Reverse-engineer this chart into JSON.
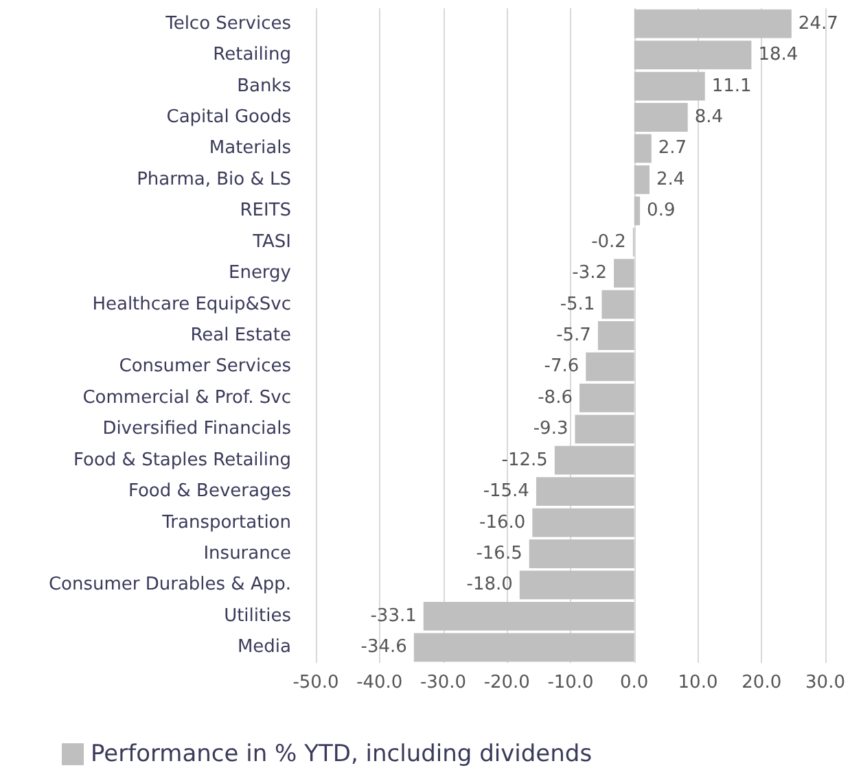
{
  "chart_data": {
    "type": "bar",
    "orientation": "horizontal",
    "categories": [
      "Telco Services",
      "Retailing",
      "Banks",
      "Capital Goods",
      "Materials",
      "Pharma, Bio & LS",
      "REITS",
      "TASI",
      "Energy",
      "Healthcare Equip&Svc",
      "Real Estate",
      "Consumer Services",
      "Commercial & Prof. Svc",
      "Diversified Financials",
      "Food & Staples Retailing",
      "Food & Beverages",
      "Transportation",
      "Insurance",
      "Consumer Durables & App.",
      "Utilities",
      "Media"
    ],
    "series": [
      {
        "name": "Performance in % YTD, including dividends",
        "color": "#bfbfbf",
        "values": [
          24.7,
          18.4,
          11.1,
          8.4,
          2.7,
          2.4,
          0.9,
          -0.2,
          -3.2,
          -5.1,
          -5.7,
          -7.6,
          -8.6,
          -9.3,
          -12.5,
          -15.4,
          -16.0,
          -16.5,
          -18.0,
          -33.1,
          -34.6
        ],
        "value_labels": [
          "24.7",
          "18.4",
          "11.1",
          "8.4",
          "2.7",
          "2.4",
          "0.9",
          "-0.2",
          "-3.2",
          "-5.1",
          "-5.7",
          "-7.6",
          "-8.6",
          "-9.3",
          "-12.5",
          "-15.4",
          "-16.0",
          "-16.5",
          "-18.0",
          "-33.1",
          "-34.6"
        ]
      }
    ],
    "xlim": [
      -50,
      30
    ],
    "xticks": [
      {
        "value": -50,
        "label": "-50.0"
      },
      {
        "value": -40,
        "label": "-40.0"
      },
      {
        "value": -30,
        "label": "-30.0"
      },
      {
        "value": -20,
        "label": "-20.0"
      },
      {
        "value": -10,
        "label": "-10.0"
      },
      {
        "value": 0,
        "label": "0.0"
      },
      {
        "value": 10,
        "label": "10.0"
      },
      {
        "value": 20,
        "label": "20.0"
      },
      {
        "value": 30,
        "label": "30.0"
      }
    ],
    "grid": "x",
    "legend": "bottom left"
  }
}
